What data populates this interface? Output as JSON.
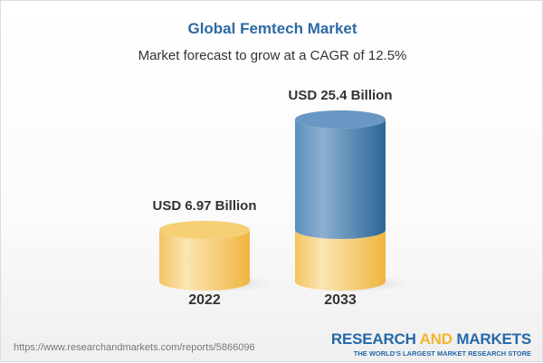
{
  "title": "Global Femtech Market",
  "subtitle": "Market forecast to grow at a CAGR of 12.5%",
  "chart_data": {
    "type": "bar",
    "style": "3d-cylinder",
    "categories": [
      "2022",
      "2033"
    ],
    "values": [
      6.97,
      25.4
    ],
    "data_labels": [
      "USD 6.97 Billion",
      "USD 25.4 Billion"
    ],
    "unit": "USD Billion",
    "colors": {
      "base": "#f3c25a",
      "growth": "#3d79ad"
    }
  },
  "footer": {
    "url": "https://www.researchandmarkets.com/reports/5866096",
    "logo_part1": "RESEARCH ",
    "logo_part2": "AND",
    "logo_part3": " MARKETS",
    "tagline": "THE WORLD'S LARGEST MARKET RESEARCH STORE"
  }
}
